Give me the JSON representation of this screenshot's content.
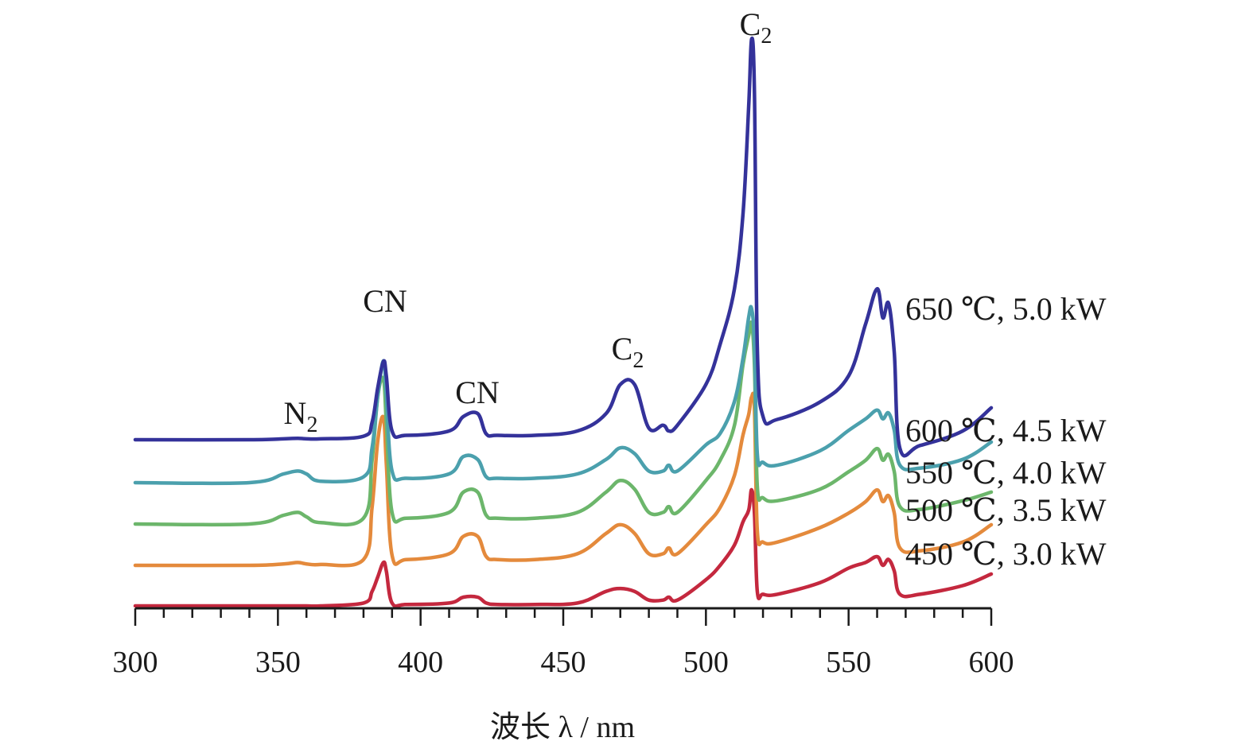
{
  "chart_data": {
    "type": "line",
    "xlabel": "波长 λ / nm",
    "ylabel": "",
    "xlim": [
      300,
      600
    ],
    "x_ticks": [
      "300",
      "350",
      "400",
      "450",
      "500",
      "550",
      "600"
    ],
    "grid": false,
    "legend": "inline labels at right end of each curve",
    "stacked_offset": true,
    "x": [
      300,
      340,
      352,
      357,
      360,
      365,
      380,
      383,
      385,
      387,
      388,
      390,
      395,
      410,
      415,
      420,
      423,
      427,
      440,
      455,
      465,
      470,
      475,
      480,
      485,
      487,
      490,
      500,
      505,
      510,
      513,
      515,
      516,
      517,
      518,
      520,
      525,
      540,
      550,
      556,
      560,
      562,
      564,
      566,
      568,
      575,
      590,
      600
    ],
    "series": [
      {
        "name": "650 ℃, 5.0 kW",
        "color": "#34329a",
        "label_lines": [
          "650 ℃, 5.0 kW"
        ],
        "values": [
          0,
          0,
          0.3,
          0.5,
          0.3,
          0.3,
          1.2,
          6,
          18,
          27,
          22,
          3,
          1.5,
          3,
          8,
          9,
          2,
          1.5,
          1.5,
          3,
          9,
          19,
          19,
          4,
          5,
          3,
          5,
          19,
          33,
          52,
          78,
          115,
          138,
          120,
          32,
          8,
          7,
          13,
          22,
          40,
          52,
          42,
          47,
          30,
          -3,
          -2,
          3,
          11
        ]
      },
      {
        "name": "600 ℃, 4.5 kW",
        "color": "#4ba0ad",
        "label_lines": [
          "600 ℃, 4.5 kW"
        ],
        "values": [
          0,
          0,
          3,
          4,
          3,
          0.5,
          2,
          12,
          30,
          42,
          30,
          4,
          1.5,
          3,
          9,
          8,
          2,
          1.5,
          1.5,
          3,
          8,
          12,
          10,
          4,
          4,
          6,
          4,
          13,
          17,
          28,
          43,
          57,
          60,
          48,
          10,
          7,
          6,
          11,
          18,
          22,
          25,
          22,
          24,
          18,
          6,
          5,
          8,
          14
        ]
      },
      {
        "name": "550 ℃, 4.0 kW",
        "color": "#6cb66b",
        "label_lines": [
          "550 ℃, 4.0 kW"
        ],
        "values": [
          0,
          0,
          3,
          4,
          2.5,
          0.5,
          2,
          22,
          44,
          50,
          35,
          4,
          2,
          4,
          11,
          11,
          3,
          2,
          2,
          4,
          11,
          15,
          12,
          4,
          4,
          6,
          4,
          15,
          22,
          34,
          55,
          65,
          69,
          55,
          13,
          9,
          8,
          12,
          18,
          22,
          26,
          22,
          24,
          18,
          6,
          5,
          8,
          11
        ]
      },
      {
        "name": "500 ℃, 3.5 kW",
        "color": "#e48a3c",
        "label_lines": [
          "500 ℃, 3.5 kW"
        ],
        "values": [
          0,
          0,
          0.5,
          1,
          0.5,
          0.3,
          2,
          20,
          43,
          51,
          35,
          3.5,
          2,
          4,
          10,
          10,
          3,
          2,
          2,
          4,
          11,
          14,
          11,
          4,
          4,
          6,
          4,
          14,
          20,
          31,
          45,
          52,
          58,
          54,
          12,
          8,
          8,
          13,
          18,
          22,
          26,
          22,
          24,
          18,
          6,
          5,
          8,
          14
        ]
      },
      {
        "name": "450 ℃, 3.0 kW",
        "color": "#c4283e",
        "label_lines": [
          "450 ℃, 3.0 kW"
        ],
        "values": [
          0,
          0,
          0,
          0,
          0,
          0,
          1,
          5,
          10,
          15,
          12,
          1,
          0.5,
          1,
          3,
          3,
          1,
          0.5,
          0.5,
          1,
          5,
          6,
          5,
          2,
          2,
          3,
          2,
          9,
          14,
          21,
          29,
          33,
          40,
          32,
          5,
          4,
          4,
          8,
          13,
          15,
          17,
          14,
          16,
          12,
          4,
          4,
          7,
          11
        ]
      }
    ],
    "annotations": [
      {
        "text": "N",
        "sub": "2",
        "x": 357
      },
      {
        "text": "CN",
        "sub": "",
        "x": 387
      },
      {
        "text": "CN",
        "sub": "",
        "x": 420
      },
      {
        "text": "C",
        "sub": "2",
        "x": 471
      },
      {
        "text": "C",
        "sub": "2",
        "x": 516
      }
    ]
  }
}
